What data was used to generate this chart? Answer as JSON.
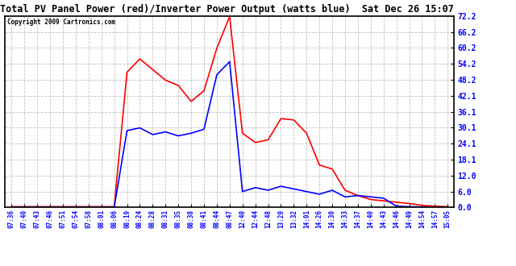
{
  "title": "Total PV Panel Power (red)/Inverter Power Output (watts blue)  Sat Dec 26 15:07",
  "copyright": "Copyright 2009 Cartronics.com",
  "ylim": [
    0.0,
    72.2
  ],
  "yticks": [
    0.0,
    6.0,
    12.0,
    18.1,
    24.1,
    30.1,
    36.1,
    42.1,
    48.2,
    54.2,
    60.2,
    66.2,
    72.2
  ],
  "background_color": "#ffffff",
  "plot_bg_color": "#ffffff",
  "grid_color": "#b0b0b0",
  "red_color": "#ff0000",
  "blue_color": "#0000ff",
  "xtick_labels": [
    "07:36",
    "07:40",
    "07:43",
    "07:46",
    "07:51",
    "07:54",
    "07:58",
    "08:01",
    "08:06",
    "08:19",
    "08:24",
    "08:28",
    "08:31",
    "08:35",
    "08:38",
    "08:41",
    "08:44",
    "08:47",
    "12:40",
    "12:44",
    "12:48",
    "13:20",
    "13:32",
    "14:01",
    "14:26",
    "14:30",
    "14:33",
    "14:37",
    "14:40",
    "14:43",
    "14:46",
    "14:49",
    "14:54",
    "14:57",
    "15:05"
  ],
  "red_y": [
    0.3,
    0.3,
    0.3,
    0.3,
    0.3,
    0.3,
    0.3,
    0.3,
    0.3,
    51.0,
    56.0,
    52.0,
    48.0,
    46.0,
    40.0,
    44.0,
    60.0,
    72.0,
    28.0,
    24.5,
    25.5,
    33.5,
    33.0,
    28.0,
    16.0,
    14.5,
    6.5,
    4.5,
    3.0,
    2.5,
    2.0,
    1.5,
    0.8,
    0.5,
    0.3
  ],
  "blue_y": [
    0.0,
    0.0,
    0.0,
    0.0,
    0.0,
    0.0,
    0.0,
    0.0,
    0.0,
    29.0,
    30.0,
    27.5,
    28.5,
    27.0,
    28.0,
    29.5,
    50.0,
    55.0,
    6.0,
    7.5,
    6.5,
    8.0,
    7.0,
    6.0,
    5.0,
    6.5,
    4.0,
    4.5,
    4.0,
    3.5,
    0.5,
    0.3,
    0.2,
    0.1,
    0.1
  ]
}
